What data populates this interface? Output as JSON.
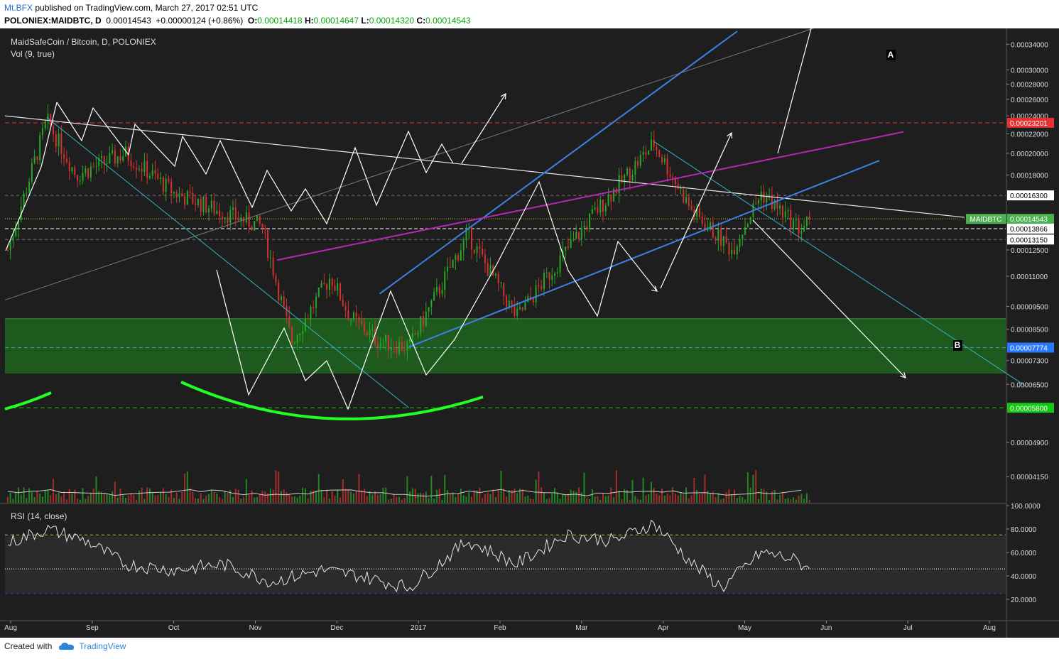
{
  "header": {
    "author": "Mt.BFX",
    "published": "published on TradingView.com, March 27, 2017 02:51 UTC",
    "symbol": "POLONIEX:MAIDBTC, D",
    "last": "0.00014543",
    "change": "+0.00000124 (+0.86%)",
    "o_label": "O:",
    "o": "0.00014418",
    "h_label": "H:",
    "h": "0.00014647",
    "l_label": "L:",
    "l": "0.00014320",
    "c_label": "C:",
    "c": "0.00014543"
  },
  "legend": {
    "title": "MaidSafeCoin / Bitcoin, D, POLONIEX",
    "volume": "Vol (9, true)",
    "rsi": "RSI (14, close)"
  },
  "annotations": {
    "a": "A",
    "b": "B",
    "series_tag": "MAIDBTC"
  },
  "footer": {
    "created": "Created with",
    "brand": "TradingView"
  },
  "colors": {
    "background": "#1e1e1e",
    "up": "#26a826",
    "down": "#d23232",
    "support_zone": "#1e5a1e",
    "channel": "#3c82e6",
    "magenta": "#b428b4",
    "teal": "#32b4c8",
    "resistance": "#e63232",
    "green_curve": "#22ff22"
  },
  "chart_data": {
    "type": "candlestick",
    "price_axis": {
      "scale": "log",
      "ticks": [
        "0.00034000",
        "0.00030000",
        "0.00028000",
        "0.00026000",
        "0.00024000",
        "0.00022000",
        "0.00020000",
        "0.00018000",
        "0.00012500",
        "0.00011000",
        "0.00009500",
        "0.00008500",
        "0.00007300",
        "0.00006500",
        "0.00004900",
        "0.00004150"
      ],
      "labels": [
        {
          "value": "0.00023201",
          "color": "#e63232"
        },
        {
          "value": "0.00016300",
          "color": "#ffffff"
        },
        {
          "value": "0.00014543",
          "color": "#4caf50"
        },
        {
          "value": "0.00013866",
          "color": "#ffffff"
        },
        {
          "value": "0.00013150",
          "color": "#ffffff"
        },
        {
          "value": "0.00007774",
          "color": "#2979ff"
        },
        {
          "value": "0.00005800",
          "color": "#14c814"
        }
      ]
    },
    "rsi_axis": {
      "ticks": [
        "100.0000",
        "80.0000",
        "60.0000",
        "40.0000",
        "20.0000"
      ],
      "upper": 75,
      "lower": 25,
      "last": 46
    },
    "time_axis": [
      "Aug",
      "Sep",
      "Oct",
      "Nov",
      "Dec",
      "2017",
      "Feb",
      "Mar",
      "Apr",
      "May",
      "Jun",
      "Jul",
      "Aug"
    ],
    "close_path": [
      [
        2016.58,
        0.000125
      ],
      [
        2016.62,
        0.000235
      ],
      [
        2016.65,
        0.00018
      ],
      [
        2016.7,
        0.0002
      ],
      [
        2016.75,
        0.000165
      ],
      [
        2016.8,
        0.00015
      ],
      [
        2016.84,
        0.00014
      ],
      [
        2016.87,
        8e-05
      ],
      [
        2016.91,
        0.00011
      ],
      [
        2016.93,
        9e-05
      ],
      [
        2016.96,
        8e-05
      ],
      [
        2016.99,
        7.8e-05
      ],
      [
        2017.05,
        0.000135
      ],
      [
        2017.1,
        9e-05
      ],
      [
        2017.18,
        0.00015
      ],
      [
        2017.24,
        0.00021
      ],
      [
        2017.28,
        0.00015
      ],
      [
        2017.32,
        0.000125
      ],
      [
        2017.35,
        0.000165
      ],
      [
        2017.39,
        0.000138
      ],
      [
        2017.4,
        0.00014543
      ]
    ],
    "rsi_path": [
      [
        2016.58,
        68
      ],
      [
        2016.62,
        80
      ],
      [
        2016.66,
        70
      ],
      [
        2016.7,
        50
      ],
      [
        2016.75,
        45
      ],
      [
        2016.8,
        50
      ],
      [
        2016.85,
        35
      ],
      [
        2016.9,
        45
      ],
      [
        2016.94,
        40
      ],
      [
        2016.99,
        30
      ],
      [
        2017.05,
        70
      ],
      [
        2017.1,
        50
      ],
      [
        2017.15,
        75
      ],
      [
        2017.2,
        70
      ],
      [
        2017.24,
        85
      ],
      [
        2017.28,
        50
      ],
      [
        2017.31,
        30
      ],
      [
        2017.35,
        60
      ],
      [
        2017.38,
        55
      ],
      [
        2017.4,
        46
      ]
    ]
  }
}
